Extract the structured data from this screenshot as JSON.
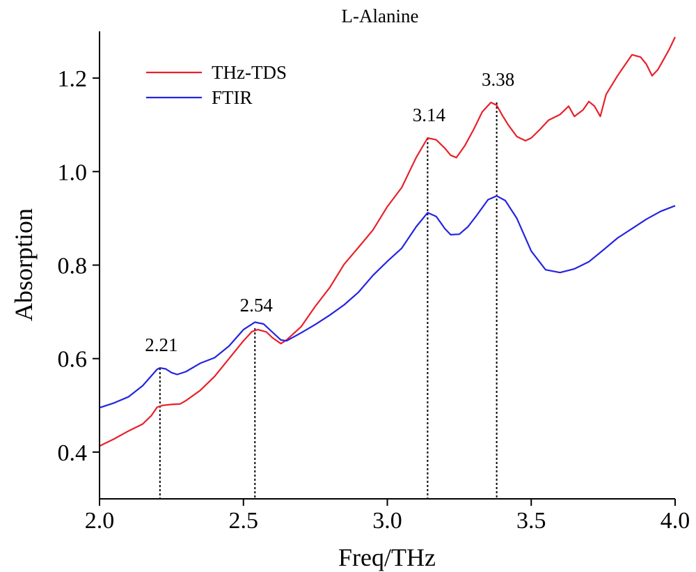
{
  "chart_data": {
    "type": "line",
    "title": "L-Alanine",
    "xlabel": "Freq/THz",
    "ylabel": "Absorption",
    "xlim": [
      2.0,
      4.0
    ],
    "ylim": [
      0.3,
      1.3
    ],
    "xticks": [
      2.0,
      2.5,
      3.0,
      3.5,
      4.0
    ],
    "xtick_labels": [
      "2.0",
      "2.5",
      "3.0",
      "3.5",
      "4.0"
    ],
    "yticks": [
      0.4,
      0.6,
      0.8,
      1.0,
      1.2
    ],
    "ytick_labels": [
      "0.4",
      "0.6",
      "0.8",
      "1.0",
      "1.2"
    ],
    "grid": false,
    "legend_position": "top-left",
    "series": [
      {
        "name": "THz-TDS",
        "color": "#e8202a",
        "points": [
          [
            2.0,
            0.413
          ],
          [
            2.05,
            0.428
          ],
          [
            2.1,
            0.445
          ],
          [
            2.15,
            0.46
          ],
          [
            2.18,
            0.478
          ],
          [
            2.2,
            0.496
          ],
          [
            2.22,
            0.5
          ],
          [
            2.25,
            0.502
          ],
          [
            2.28,
            0.503
          ],
          [
            2.3,
            0.51
          ],
          [
            2.35,
            0.532
          ],
          [
            2.4,
            0.562
          ],
          [
            2.45,
            0.6
          ],
          [
            2.5,
            0.638
          ],
          [
            2.53,
            0.658
          ],
          [
            2.55,
            0.662
          ],
          [
            2.58,
            0.657
          ],
          [
            2.6,
            0.645
          ],
          [
            2.63,
            0.632
          ],
          [
            2.65,
            0.64
          ],
          [
            2.7,
            0.668
          ],
          [
            2.75,
            0.712
          ],
          [
            2.8,
            0.752
          ],
          [
            2.85,
            0.802
          ],
          [
            2.9,
            0.838
          ],
          [
            2.95,
            0.875
          ],
          [
            3.0,
            0.925
          ],
          [
            3.05,
            0.966
          ],
          [
            3.1,
            1.03
          ],
          [
            3.14,
            1.072
          ],
          [
            3.17,
            1.068
          ],
          [
            3.2,
            1.05
          ],
          [
            3.22,
            1.035
          ],
          [
            3.24,
            1.03
          ],
          [
            3.27,
            1.056
          ],
          [
            3.3,
            1.09
          ],
          [
            3.33,
            1.128
          ],
          [
            3.36,
            1.148
          ],
          [
            3.38,
            1.142
          ],
          [
            3.4,
            1.12
          ],
          [
            3.42,
            1.1
          ],
          [
            3.45,
            1.075
          ],
          [
            3.48,
            1.066
          ],
          [
            3.5,
            1.072
          ],
          [
            3.53,
            1.09
          ],
          [
            3.56,
            1.11
          ],
          [
            3.6,
            1.122
          ],
          [
            3.63,
            1.14
          ],
          [
            3.65,
            1.118
          ],
          [
            3.68,
            1.132
          ],
          [
            3.7,
            1.15
          ],
          [
            3.72,
            1.14
          ],
          [
            3.74,
            1.118
          ],
          [
            3.76,
            1.165
          ],
          [
            3.8,
            1.205
          ],
          [
            3.83,
            1.232
          ],
          [
            3.85,
            1.25
          ],
          [
            3.88,
            1.245
          ],
          [
            3.9,
            1.23
          ],
          [
            3.92,
            1.205
          ],
          [
            3.94,
            1.218
          ],
          [
            3.96,
            1.24
          ],
          [
            3.98,
            1.262
          ],
          [
            4.0,
            1.288
          ]
        ]
      },
      {
        "name": "FTIR",
        "color": "#2424e0",
        "points": [
          [
            2.0,
            0.495
          ],
          [
            2.05,
            0.505
          ],
          [
            2.1,
            0.518
          ],
          [
            2.15,
            0.542
          ],
          [
            2.2,
            0.577
          ],
          [
            2.21,
            0.58
          ],
          [
            2.23,
            0.578
          ],
          [
            2.25,
            0.57
          ],
          [
            2.27,
            0.566
          ],
          [
            2.3,
            0.572
          ],
          [
            2.35,
            0.59
          ],
          [
            2.4,
            0.602
          ],
          [
            2.45,
            0.627
          ],
          [
            2.5,
            0.662
          ],
          [
            2.54,
            0.678
          ],
          [
            2.57,
            0.674
          ],
          [
            2.6,
            0.657
          ],
          [
            2.63,
            0.64
          ],
          [
            2.65,
            0.638
          ],
          [
            2.7,
            0.655
          ],
          [
            2.75,
            0.673
          ],
          [
            2.8,
            0.693
          ],
          [
            2.85,
            0.715
          ],
          [
            2.9,
            0.742
          ],
          [
            2.95,
            0.778
          ],
          [
            3.0,
            0.808
          ],
          [
            3.05,
            0.836
          ],
          [
            3.1,
            0.882
          ],
          [
            3.14,
            0.912
          ],
          [
            3.17,
            0.904
          ],
          [
            3.2,
            0.878
          ],
          [
            3.22,
            0.865
          ],
          [
            3.25,
            0.866
          ],
          [
            3.28,
            0.882
          ],
          [
            3.31,
            0.906
          ],
          [
            3.35,
            0.94
          ],
          [
            3.38,
            0.948
          ],
          [
            3.41,
            0.938
          ],
          [
            3.45,
            0.9
          ],
          [
            3.5,
            0.83
          ],
          [
            3.55,
            0.79
          ],
          [
            3.6,
            0.784
          ],
          [
            3.65,
            0.792
          ],
          [
            3.7,
            0.807
          ],
          [
            3.75,
            0.832
          ],
          [
            3.8,
            0.858
          ],
          [
            3.85,
            0.878
          ],
          [
            3.9,
            0.898
          ],
          [
            3.95,
            0.915
          ],
          [
            4.0,
            0.927
          ]
        ]
      }
    ],
    "annotations": [
      {
        "label": "2.21",
        "x": 2.21,
        "y_top": 0.58
      },
      {
        "label": "2.54",
        "x": 2.54,
        "y_top": 0.665
      },
      {
        "label": "3.14",
        "x": 3.14,
        "y_top": 1.072
      },
      {
        "label": "3.38",
        "x": 3.38,
        "y_top": 1.148
      }
    ]
  }
}
